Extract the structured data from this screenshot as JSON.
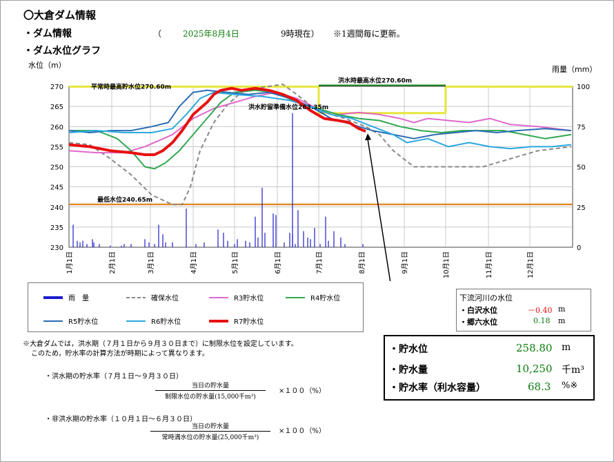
{
  "header": {
    "title": "〇大倉ダム情報",
    "dam_info_label": "・ダム情報",
    "open_paren": "（",
    "date": "2025年8月4日",
    "time_status": "9時現在）",
    "update_note": "※1週間毎に更新。",
    "graph_label": "・ダム水位グラフ"
  },
  "chart_data": {
    "type": "line",
    "ylabel": "水位（m）",
    "y2label": "雨量（mm）",
    "ylim": [
      230,
      270
    ],
    "y_ticks": [
      "270",
      "265",
      "260",
      "255",
      "250",
      "245",
      "240",
      "235",
      "230"
    ],
    "y2lim": [
      0,
      100
    ],
    "y2_ticks": [
      "100",
      "75",
      "50",
      "25",
      "0"
    ],
    "x_ticks": [
      "1月1日",
      "2月1日",
      "3月1日",
      "4月1日",
      "5月1日",
      "6月1日",
      "7月1日",
      "8月1日",
      "9月1日",
      "10月1日",
      "11月1日",
      "12月1日"
    ],
    "grid": true,
    "annotations": {
      "normal_max": "平常時最高貯水位270.60m",
      "flood_max": "洪水時最高水位270.60m",
      "flood_prep": "洪水貯留準備水位263.35m",
      "min_level": "最低水位240.65m"
    },
    "reference_levels": {
      "normal_max": 270.6,
      "flood_max": 270.6,
      "flood_prep": 263.35,
      "min_level": 240.65
    },
    "series": [
      {
        "name": "確保水位",
        "color": "#888888",
        "dash": true,
        "points": [
          [
            0,
            256
          ],
          [
            15,
            255.5
          ],
          [
            30,
            252
          ],
          [
            45,
            248
          ],
          [
            60,
            243
          ],
          [
            75,
            240.6
          ],
          [
            82,
            240.6
          ],
          [
            88,
            245
          ],
          [
            95,
            254
          ],
          [
            105,
            261
          ],
          [
            115,
            265.5
          ],
          [
            125,
            268.5
          ],
          [
            135,
            269.5
          ],
          [
            145,
            270
          ],
          [
            155,
            270.5
          ],
          [
            165,
            268
          ],
          [
            180,
            264
          ],
          [
            200,
            262
          ],
          [
            215,
            260
          ],
          [
            225,
            258
          ],
          [
            235,
            254
          ],
          [
            250,
            250
          ],
          [
            275,
            250
          ],
          [
            300,
            250
          ],
          [
            320,
            252
          ],
          [
            340,
            254
          ],
          [
            364,
            255
          ]
        ]
      },
      {
        "name": "R3貯水位",
        "color": "#e066cc",
        "points": [
          [
            0,
            254
          ],
          [
            20,
            253.5
          ],
          [
            40,
            253.5
          ],
          [
            55,
            255
          ],
          [
            75,
            258
          ],
          [
            90,
            262
          ],
          [
            105,
            264.5
          ],
          [
            120,
            266
          ],
          [
            135,
            267.5
          ],
          [
            150,
            268.5
          ],
          [
            165,
            267
          ],
          [
            180,
            264.5
          ],
          [
            195,
            263
          ],
          [
            210,
            263.5
          ],
          [
            225,
            263
          ],
          [
            240,
            262
          ],
          [
            250,
            261
          ],
          [
            260,
            262
          ],
          [
            275,
            261.5
          ],
          [
            290,
            261
          ],
          [
            305,
            262
          ],
          [
            320,
            260.5
          ],
          [
            340,
            260
          ],
          [
            364,
            259
          ]
        ]
      },
      {
        "name": "R4貯水位",
        "color": "#2fa84f",
        "points": [
          [
            0,
            259
          ],
          [
            20,
            259
          ],
          [
            35,
            257
          ],
          [
            45,
            254
          ],
          [
            55,
            250
          ],
          [
            62,
            249.5
          ],
          [
            70,
            251
          ],
          [
            80,
            254
          ],
          [
            90,
            258
          ],
          [
            100,
            262
          ],
          [
            110,
            266
          ],
          [
            120,
            268.5
          ],
          [
            135,
            269
          ],
          [
            150,
            268.5
          ],
          [
            165,
            266
          ],
          [
            180,
            264.5
          ],
          [
            195,
            263
          ],
          [
            210,
            262
          ],
          [
            225,
            261.5
          ],
          [
            240,
            260
          ],
          [
            255,
            259
          ],
          [
            270,
            258.5
          ],
          [
            285,
            259
          ],
          [
            300,
            259
          ],
          [
            315,
            259
          ],
          [
            330,
            258
          ],
          [
            345,
            257
          ],
          [
            364,
            258
          ]
        ]
      },
      {
        "name": "R5貯水位",
        "color": "#2a6cb3",
        "points": [
          [
            0,
            259
          ],
          [
            15,
            258.5
          ],
          [
            30,
            259
          ],
          [
            45,
            259
          ],
          [
            60,
            260
          ],
          [
            72,
            261
          ],
          [
            80,
            265
          ],
          [
            90,
            268.5
          ],
          [
            100,
            269
          ],
          [
            115,
            268.5
          ],
          [
            130,
            268
          ],
          [
            145,
            268.5
          ],
          [
            160,
            267
          ],
          [
            175,
            265
          ],
          [
            190,
            262
          ],
          [
            205,
            260.5
          ],
          [
            220,
            259
          ],
          [
            235,
            258
          ],
          [
            250,
            257
          ],
          [
            265,
            258
          ],
          [
            280,
            258.5
          ],
          [
            295,
            259
          ],
          [
            310,
            258.5
          ],
          [
            325,
            259
          ],
          [
            345,
            259.5
          ],
          [
            364,
            259
          ]
        ]
      },
      {
        "name": "R6貯水位",
        "color": "#29a8e0",
        "points": [
          [
            0,
            258.5
          ],
          [
            20,
            259
          ],
          [
            40,
            258.5
          ],
          [
            60,
            258.5
          ],
          [
            75,
            259.5
          ],
          [
            85,
            263
          ],
          [
            95,
            267
          ],
          [
            105,
            268.5
          ],
          [
            120,
            268
          ],
          [
            140,
            267.5
          ],
          [
            160,
            266.5
          ],
          [
            175,
            265
          ],
          [
            190,
            263
          ],
          [
            205,
            262
          ],
          [
            220,
            260
          ],
          [
            235,
            258
          ],
          [
            245,
            256
          ],
          [
            260,
            257
          ],
          [
            275,
            255
          ],
          [
            290,
            256
          ],
          [
            305,
            255
          ],
          [
            320,
            254.5
          ],
          [
            335,
            255
          ],
          [
            350,
            255
          ],
          [
            364,
            255.5
          ]
        ]
      },
      {
        "name": "R7貯水位",
        "color": "#e81010",
        "thick": true,
        "points": [
          [
            0,
            255.5
          ],
          [
            15,
            255
          ],
          [
            30,
            254
          ],
          [
            45,
            253.5
          ],
          [
            55,
            253
          ],
          [
            62,
            253
          ],
          [
            68,
            254
          ],
          [
            75,
            256
          ],
          [
            82,
            259
          ],
          [
            90,
            263
          ],
          [
            100,
            266
          ],
          [
            105,
            268
          ],
          [
            110,
            269
          ],
          [
            118,
            269.5
          ],
          [
            125,
            269
          ],
          [
            135,
            269.5
          ],
          [
            145,
            269
          ],
          [
            155,
            268
          ],
          [
            165,
            266.5
          ],
          [
            175,
            264
          ],
          [
            185,
            262
          ],
          [
            195,
            261.5
          ],
          [
            203,
            261
          ],
          [
            210,
            259.5
          ],
          [
            215,
            258.8
          ]
        ]
      }
    ],
    "rain_series": {
      "name": "雨　量",
      "color": "#1a1acc",
      "bars": [
        [
          3,
          14
        ],
        [
          6,
          4
        ],
        [
          8,
          3
        ],
        [
          10,
          4
        ],
        [
          13,
          2
        ],
        [
          17,
          5
        ],
        [
          18,
          3
        ],
        [
          22,
          2
        ],
        [
          30,
          1
        ],
        [
          38,
          1
        ],
        [
          40,
          2
        ],
        [
          45,
          2
        ],
        [
          55,
          5
        ],
        [
          58,
          3
        ],
        [
          62,
          2
        ],
        [
          65,
          14
        ],
        [
          68,
          8
        ],
        [
          70,
          3
        ],
        [
          75,
          3
        ],
        [
          85,
          24
        ],
        [
          92,
          2
        ],
        [
          98,
          3
        ],
        [
          108,
          11
        ],
        [
          112,
          9
        ],
        [
          115,
          4
        ],
        [
          120,
          2
        ],
        [
          122,
          5
        ],
        [
          128,
          4
        ],
        [
          131,
          3
        ],
        [
          135,
          19
        ],
        [
          137,
          6
        ],
        [
          140,
          37
        ],
        [
          142,
          9
        ],
        [
          148,
          21
        ],
        [
          150,
          20
        ],
        [
          156,
          3
        ],
        [
          160,
          9
        ],
        [
          162,
          8
        ],
        [
          164,
          2
        ],
        [
          166,
          23
        ],
        [
          170,
          10
        ],
        [
          173,
          6
        ],
        [
          175,
          5
        ],
        [
          178,
          12
        ],
        [
          182,
          2
        ],
        [
          186,
          19
        ],
        [
          188,
          4
        ],
        [
          192,
          10
        ],
        [
          197,
          6
        ],
        [
          200,
          2
        ],
        [
          213,
          2
        ]
      ]
    },
    "flood_prep_spike": {
      "x": 162,
      "value": 263.35
    }
  },
  "legend": {
    "rain": "雨　量",
    "secured": "確保水位",
    "r3": "R3貯水位",
    "r4": "R4貯水位",
    "r5": "R5貯水位",
    "r6": "R6貯水位",
    "r7": "R7貯水位"
  },
  "downstream": {
    "title": "下流河川の水位",
    "rows": [
      {
        "label": "・白沢水位",
        "value": "－0.40",
        "unit": "m",
        "color": "#e81010"
      },
      {
        "label": "・郷六水位",
        "value": "0.18",
        "unit": "m",
        "color": "#0a7a0a"
      }
    ]
  },
  "stats": {
    "rows": [
      {
        "label": "・貯水位",
        "value": "258.80",
        "unit": "m"
      },
      {
        "label": "・貯水量",
        "value": "10,250",
        "unit": "千m³"
      },
      {
        "label": "・貯水率（利水容量）",
        "value": "68.3",
        "unit": "%※"
      }
    ]
  },
  "notes": {
    "line1": "※大倉ダムでは，洪水期（７月１日から９月３０日まで）に制限水位を設定しています。",
    "line2": "このため，貯水率の計算方法が時期によって異なります。",
    "flood_title": "・洪水期の貯水率（７月１日～９月３０日）",
    "flood_num": "当日の貯水量",
    "flood_den": "制限水位の貯水量(15,000千m³)",
    "flood_mult": "×１００（%）",
    "nonflood_title": "・非洪水期の貯水率（１０月１日～６月３０日）",
    "nonflood_num": "当日の貯水量",
    "nonflood_den": "常時満水位の貯水量(25,000千m³)",
    "nonflood_mult": "×１００（%）"
  }
}
